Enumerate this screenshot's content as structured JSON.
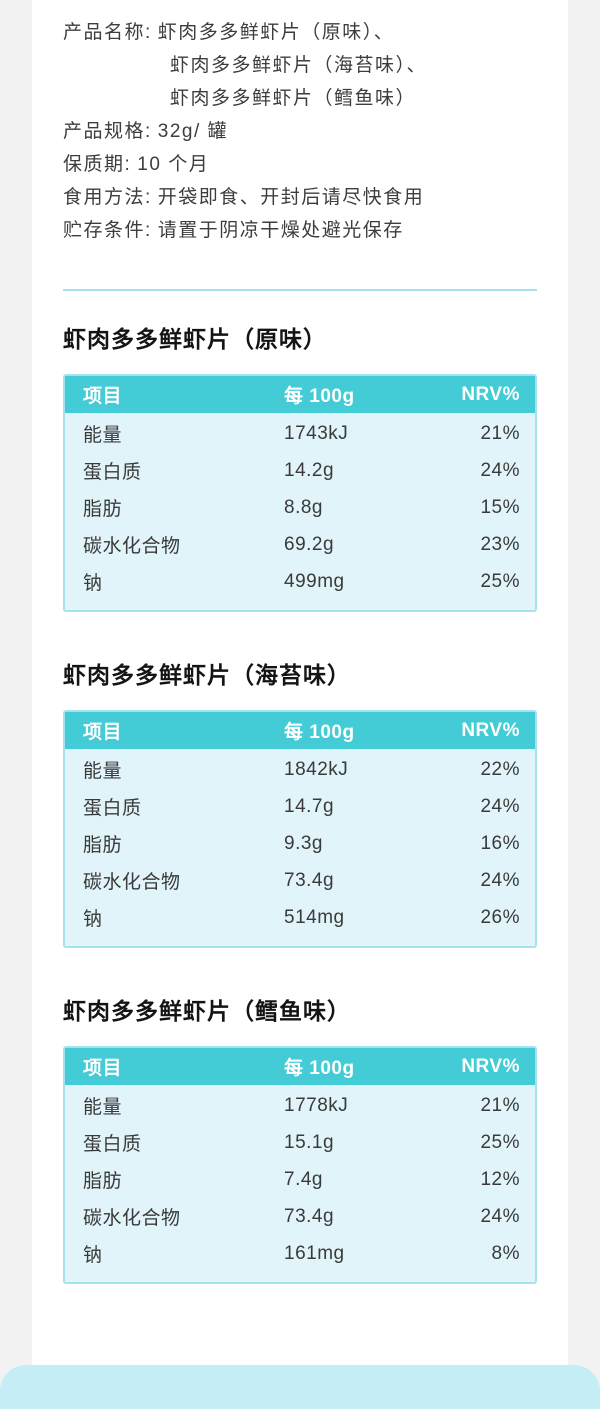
{
  "colors": {
    "page_bg": "#f2f2f2",
    "card_bg": "#ffffff",
    "accent_teal": "#43cbd6",
    "table_body_bg": "#e1f4f9",
    "table_border": "#a6e2ee",
    "bottom_box": "#c4edf6",
    "text": "#3d3d3d"
  },
  "product_info": {
    "rows": [
      {
        "label": "产品名称:",
        "value": "虾肉多多鲜虾片（原味）、"
      },
      {
        "label": "产品规格:",
        "value": "32g/ 罐"
      },
      {
        "label": "保质期:",
        "value": "10 个月"
      },
      {
        "label": "食用方法:",
        "value": "开袋即食、开封后请尽快食用"
      },
      {
        "label": "贮存条件:",
        "value": "请置于阴凉干燥处避光保存"
      }
    ],
    "name_continuations": [
      "虾肉多多鲜虾片（海苔味）、",
      "虾肉多多鲜虾片（鳕鱼味）"
    ]
  },
  "nutrition_tables": [
    {
      "title": "虾肉多多鲜虾片（原味）",
      "headers": [
        "项目",
        "每 100g",
        "NRV%"
      ],
      "rows": [
        [
          "能量",
          "1743kJ",
          "21%"
        ],
        [
          "蛋白质",
          "14.2g",
          "24%"
        ],
        [
          "脂肪",
          "8.8g",
          "15%"
        ],
        [
          "碳水化合物",
          "69.2g",
          "23%"
        ],
        [
          "钠",
          "499mg",
          "25%"
        ]
      ]
    },
    {
      "title": "虾肉多多鲜虾片（海苔味）",
      "headers": [
        "项目",
        "每 100g",
        "NRV%"
      ],
      "rows": [
        [
          "能量",
          "1842kJ",
          "22%"
        ],
        [
          "蛋白质",
          "14.7g",
          "24%"
        ],
        [
          "脂肪",
          "9.3g",
          "16%"
        ],
        [
          "碳水化合物",
          "73.4g",
          "24%"
        ],
        [
          "钠",
          "514mg",
          "26%"
        ]
      ]
    },
    {
      "title": "虾肉多多鲜虾片（鳕鱼味）",
      "headers": [
        "项目",
        "每 100g",
        "NRV%"
      ],
      "rows": [
        [
          "能量",
          "1778kJ",
          "21%"
        ],
        [
          "蛋白质",
          "15.1g",
          "25%"
        ],
        [
          "脂肪",
          "7.4g",
          "12%"
        ],
        [
          "碳水化合物",
          "73.4g",
          "24%"
        ],
        [
          "钠",
          "161mg",
          "8%"
        ]
      ]
    }
  ]
}
